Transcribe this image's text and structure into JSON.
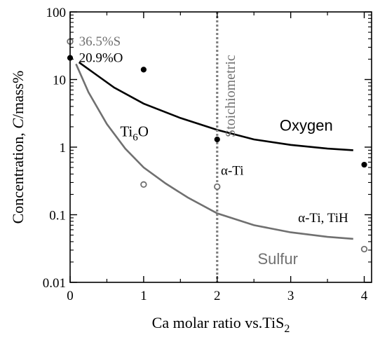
{
  "chart_data": {
    "type": "scatter",
    "xlabel": "Ca molar ratio vs.TiS",
    "xlabel_sub": "2",
    "ylabel_prefix": "Concentration, ",
    "ylabel_italic": "C",
    "ylabel_suffix": "/mass%",
    "xlim": [
      0,
      4.1
    ],
    "ylim": [
      0.01,
      100
    ],
    "yscale": "log",
    "xticks": [
      0,
      1,
      2,
      3,
      4
    ],
    "yticks": [
      {
        "value": 0.01,
        "label": "0.01"
      },
      {
        "value": 0.1,
        "label": "0.1"
      },
      {
        "value": 1,
        "label": "1"
      },
      {
        "value": 10,
        "label": "10"
      },
      {
        "value": 100,
        "label": "100"
      }
    ],
    "grid": false,
    "colors": {
      "oxygen": "#000000",
      "sulfur": "#707070",
      "stoichiometric": "#808080"
    },
    "series": [
      {
        "name": "Oxygen",
        "marker": "filled-circle",
        "points": [
          [
            0,
            20.9
          ],
          [
            1,
            14
          ],
          [
            2,
            1.3
          ],
          [
            4,
            0.55
          ]
        ],
        "curve": [
          [
            0.12,
            18
          ],
          [
            0.3,
            13
          ],
          [
            0.6,
            7.6
          ],
          [
            1.0,
            4.4
          ],
          [
            1.5,
            2.7
          ],
          [
            2.0,
            1.8
          ],
          [
            2.5,
            1.3
          ],
          [
            3.0,
            1.08
          ],
          [
            3.5,
            0.95
          ],
          [
            3.85,
            0.9
          ]
        ]
      },
      {
        "name": "Sulfur",
        "marker": "open-circle",
        "points": [
          [
            0,
            36.5
          ],
          [
            1,
            0.28
          ],
          [
            2,
            0.26
          ],
          [
            4,
            0.031
          ]
        ],
        "curve": [
          [
            0.08,
            17
          ],
          [
            0.25,
            6.5
          ],
          [
            0.5,
            2.2
          ],
          [
            0.75,
            0.95
          ],
          [
            1.0,
            0.5
          ],
          [
            1.3,
            0.29
          ],
          [
            1.6,
            0.18
          ],
          [
            2.0,
            0.105
          ],
          [
            2.5,
            0.07
          ],
          [
            3.0,
            0.055
          ],
          [
            3.5,
            0.047
          ],
          [
            3.85,
            0.044
          ]
        ]
      }
    ],
    "vline": {
      "x": 2,
      "label": "Stoichiometric"
    },
    "annotations": [
      {
        "text": "36.5%S",
        "x": 0.12,
        "y": 36.5,
        "color": "#707070"
      },
      {
        "text": "20.9%O",
        "x": 0.12,
        "y": 20.9,
        "color": "#000000"
      },
      {
        "text": "α-Ti",
        "x": 2.05,
        "y": 0.45,
        "color": "#000000"
      },
      {
        "text": "α-Ti, TiH",
        "x": 3.1,
        "y": 0.09,
        "color": "#000000"
      }
    ],
    "phase_label": {
      "main": "Ti",
      "sub": "6",
      "tail": "O",
      "x": 0.68,
      "y": 1.45
    },
    "curve_labels": [
      {
        "text": "Oxygen",
        "x": 2.85,
        "y": 1.75,
        "color": "#000000"
      },
      {
        "text": "Sulfur",
        "x": 2.55,
        "y": 0.0185,
        "color": "#707070"
      }
    ]
  }
}
